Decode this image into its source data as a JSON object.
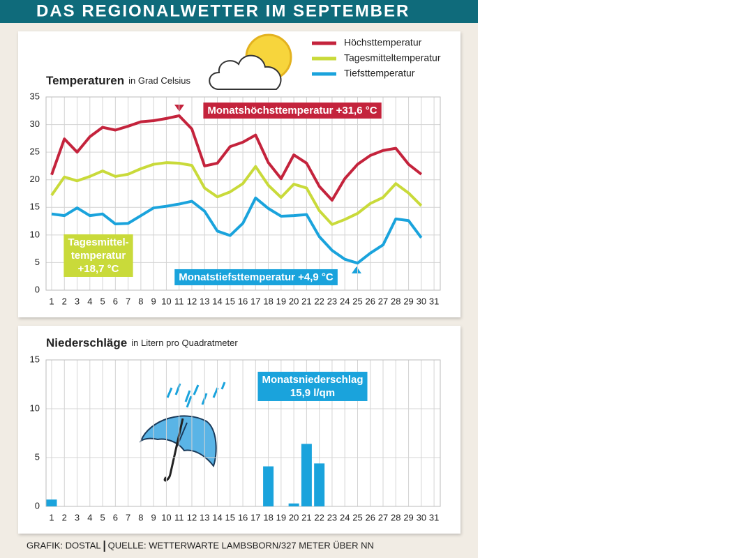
{
  "title": "DAS REGIONALWETTER IM SEPTEMBER",
  "footer": {
    "credit": "GRAFIK: DOSTAL",
    "source": "QUELLE: WETTERWARTE LAMBSBORN/327 METER ÜBER NN"
  },
  "chart_data": [
    {
      "type": "line",
      "title": "Temperaturen",
      "subtitle": "in Grad Celsius",
      "categories": [
        "1",
        "2",
        "3",
        "4",
        "5",
        "6",
        "7",
        "8",
        "9",
        "10",
        "11",
        "12",
        "13",
        "14",
        "15",
        "16",
        "17",
        "18",
        "19",
        "20",
        "21",
        "22",
        "23",
        "24",
        "25",
        "26",
        "27",
        "28",
        "29",
        "30",
        "31"
      ],
      "series": [
        {
          "name": "Höchsttemperatur",
          "color": "#c4233c",
          "values": [
            20.9,
            27.4,
            25.0,
            27.8,
            29.5,
            29.0,
            29.7,
            30.5,
            30.7,
            31.1,
            31.6,
            29.2,
            22.5,
            23.0,
            26.0,
            26.8,
            28.1,
            23.1,
            20.2,
            24.5,
            23.0,
            18.8,
            16.3,
            20.2,
            22.8,
            24.4,
            25.3,
            25.7,
            22.8,
            21.0,
            null
          ]
        },
        {
          "name": "Tagesmitteltemperatur",
          "color": "#c9da3a",
          "values": [
            17.2,
            20.5,
            19.8,
            20.6,
            21.6,
            20.6,
            21.0,
            22.0,
            22.8,
            23.1,
            23.0,
            22.6,
            18.5,
            16.9,
            17.8,
            19.3,
            22.4,
            19.0,
            16.8,
            19.2,
            18.5,
            14.4,
            11.9,
            12.8,
            13.9,
            15.7,
            16.8,
            19.3,
            17.6,
            15.3,
            null
          ]
        },
        {
          "name": "Tiefsttemperatur",
          "color": "#1aa3dc",
          "values": [
            13.8,
            13.5,
            14.9,
            13.5,
            13.8,
            12.0,
            12.1,
            13.5,
            14.9,
            15.2,
            15.6,
            16.1,
            14.3,
            10.7,
            9.9,
            12.1,
            16.7,
            14.8,
            13.4,
            13.5,
            13.7,
            9.7,
            7.2,
            5.6,
            4.9,
            6.7,
            8.2,
            12.9,
            12.6,
            9.5,
            null
          ]
        }
      ],
      "ylim": [
        0,
        35
      ],
      "yticks": [
        0,
        5,
        10,
        15,
        20,
        25,
        30,
        35
      ],
      "grid": true,
      "legend": "top-right",
      "annotations": [
        {
          "lines": [
            "Monatshöchsttemperatur +31,6 °C"
          ],
          "color": "#c4233c"
        },
        {
          "lines": [
            "Tagesmittel-",
            "temperatur",
            "+18,7 °C"
          ],
          "color": "#c9da3a"
        },
        {
          "lines": [
            "Monatstiefsttemperatur +4,9 °C"
          ],
          "color": "#1aa3dc"
        }
      ]
    },
    {
      "type": "bar",
      "title": "Niederschläge",
      "subtitle": "in Litern pro Quadratmeter",
      "categories": [
        "1",
        "2",
        "3",
        "4",
        "5",
        "6",
        "7",
        "8",
        "9",
        "10",
        "11",
        "12",
        "13",
        "14",
        "15",
        "16",
        "17",
        "18",
        "19",
        "20",
        "21",
        "22",
        "23",
        "24",
        "25",
        "26",
        "27",
        "28",
        "29",
        "30",
        "31"
      ],
      "values": [
        0.7,
        0,
        0,
        0,
        0,
        0,
        0,
        0,
        0,
        0,
        0,
        0,
        0,
        0,
        0,
        0,
        0,
        4.1,
        0,
        0.3,
        6.4,
        4.4,
        0,
        0,
        0,
        0,
        0,
        0,
        0,
        0,
        null
      ],
      "color": "#1aa3dc",
      "ylim": [
        0,
        15
      ],
      "yticks": [
        0,
        5,
        10,
        15
      ],
      "grid": true,
      "annotations": [
        {
          "lines": [
            "Monatsniederschlag",
            "15,9 l/qm"
          ],
          "color": "#1aa3dc"
        }
      ]
    }
  ]
}
